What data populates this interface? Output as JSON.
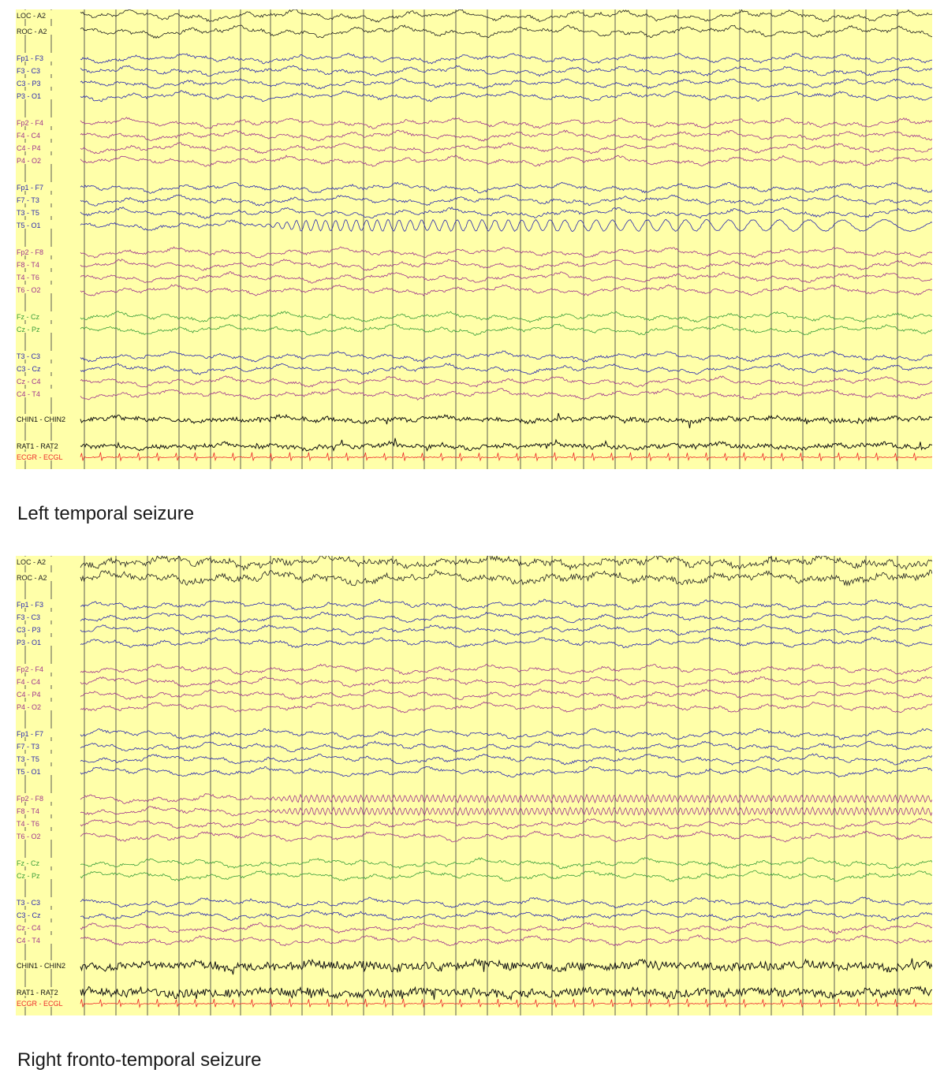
{
  "chart_data": [
    {
      "type": "line",
      "caption": "Left temporal seizure",
      "colors": {
        "background": "#ffffa9",
        "grid": "#4a4a4a",
        "eog": "#222222",
        "left": "#2a2ab0",
        "right": "#a0358e",
        "midline": "#3a9e3a",
        "emg": "#111111",
        "ecg": "#ee2a2a"
      },
      "channels": [
        {
          "label": "LOC - A2",
          "group": "eog"
        },
        {
          "label": "ROC - A2",
          "group": "eog"
        },
        {
          "label": "Fp1 - F3",
          "group": "left"
        },
        {
          "label": "F3 - C3",
          "group": "left"
        },
        {
          "label": "C3 - P3",
          "group": "left"
        },
        {
          "label": "P3 - O1",
          "group": "left"
        },
        {
          "label": "Fp2 - F4",
          "group": "right"
        },
        {
          "label": "F4 - C4",
          "group": "right"
        },
        {
          "label": "C4 - P4",
          "group": "right"
        },
        {
          "label": "P4 - O2",
          "group": "right"
        },
        {
          "label": "Fp1 - F7",
          "group": "left"
        },
        {
          "label": "F7 - T3",
          "group": "left"
        },
        {
          "label": "T3 - T5",
          "group": "left"
        },
        {
          "label": "T5 - O1",
          "group": "left",
          "rhythmic": true
        },
        {
          "label": "Fp2 - F8",
          "group": "right"
        },
        {
          "label": "F8 - T4",
          "group": "right"
        },
        {
          "label": "T4 - T6",
          "group": "right"
        },
        {
          "label": "T6 - O2",
          "group": "right"
        },
        {
          "label": "Fz - Cz",
          "group": "midline"
        },
        {
          "label": "Cz - Pz",
          "group": "midline"
        },
        {
          "label": "T3 - C3",
          "group": "left"
        },
        {
          "label": "C3 - Cz",
          "group": "left"
        },
        {
          "label": "Cz - C4",
          "group": "right"
        },
        {
          "label": "C4 - T4",
          "group": "right"
        },
        {
          "label": "CHIN1 - CHIN2",
          "group": "emg"
        },
        {
          "label": "RAT1 - RAT2",
          "group": "emg"
        },
        {
          "label": "ECGR - ECGL",
          "group": "ecg"
        }
      ]
    },
    {
      "type": "line",
      "caption": "Right fronto-temporal seizure",
      "colors": {
        "background": "#ffffa9",
        "grid": "#4a4a4a",
        "eog": "#222222",
        "left": "#2a2ab0",
        "right": "#a0358e",
        "midline": "#3a9e3a",
        "emg": "#111111",
        "ecg": "#ee2a2a"
      },
      "channels": [
        {
          "label": "LOC - A2",
          "group": "eog"
        },
        {
          "label": "ROC - A2",
          "group": "eog"
        },
        {
          "label": "Fp1 - F3",
          "group": "left"
        },
        {
          "label": "F3 - C3",
          "group": "left"
        },
        {
          "label": "C3 - P3",
          "group": "left"
        },
        {
          "label": "P3 - O1",
          "group": "left"
        },
        {
          "label": "Fp2 - F4",
          "group": "right"
        },
        {
          "label": "F4 - C4",
          "group": "right"
        },
        {
          "label": "C4 - P4",
          "group": "right"
        },
        {
          "label": "P4 - O2",
          "group": "right"
        },
        {
          "label": "Fp1 - F7",
          "group": "left"
        },
        {
          "label": "F7 - T3",
          "group": "left"
        },
        {
          "label": "T3 - T5",
          "group": "left"
        },
        {
          "label": "T5 - O1",
          "group": "left"
        },
        {
          "label": "Fp2 - F8",
          "group": "right",
          "rhythmic": true
        },
        {
          "label": "F8 - T4",
          "group": "right",
          "rhythmic": true
        },
        {
          "label": "T4 - T6",
          "group": "right"
        },
        {
          "label": "T6 - O2",
          "group": "right"
        },
        {
          "label": "Fz - Cz",
          "group": "midline"
        },
        {
          "label": "Cz - Pz",
          "group": "midline"
        },
        {
          "label": "T3 - C3",
          "group": "left"
        },
        {
          "label": "C3 - Cz",
          "group": "left"
        },
        {
          "label": "Cz - C4",
          "group": "right"
        },
        {
          "label": "C4 - T4",
          "group": "right"
        },
        {
          "label": "CHIN1 - CHIN2",
          "group": "emg"
        },
        {
          "label": "RAT1 - RAT2",
          "group": "emg"
        },
        {
          "label": "ECGR - ECGL",
          "group": "ecg"
        }
      ]
    }
  ]
}
